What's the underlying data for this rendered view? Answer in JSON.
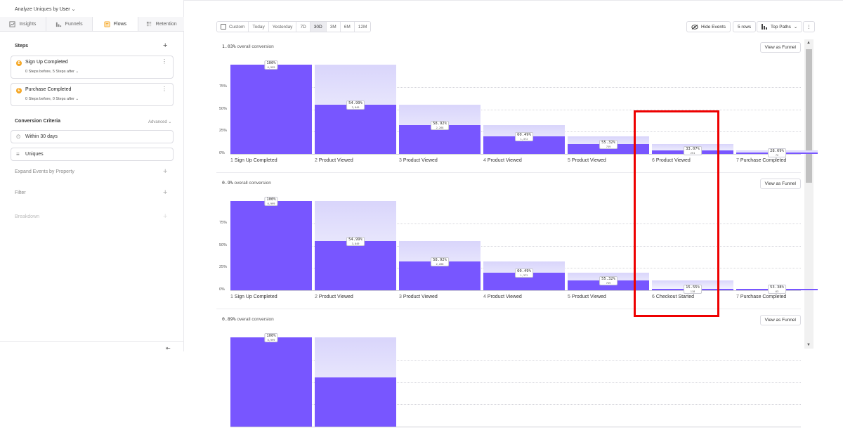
{
  "sidebar": {
    "analyze_prefix": "Analyze Uniques by",
    "analyze_value": "User",
    "tabs": [
      {
        "label": "Insights",
        "icon": "insights-icon",
        "active": false
      },
      {
        "label": "Funnels",
        "icon": "funnels-icon",
        "active": false
      },
      {
        "label": "Flows",
        "icon": "flows-icon",
        "active": true
      },
      {
        "label": "Retention",
        "icon": "retention-icon",
        "active": false
      }
    ],
    "steps_title": "Steps",
    "steps": [
      {
        "title": "Sign Up Completed",
        "sub": "0 Steps before, 5 Steps after"
      },
      {
        "title": "Purchase Completed",
        "sub": "0 Steps before, 0 Steps after"
      }
    ],
    "criteria_title": "Conversion Criteria",
    "advanced": "Advanced",
    "within": "Within 30 days",
    "uniques": "Uniques",
    "expand_events": "Expand Events by Property",
    "filter": "Filter",
    "breakdown": "Breakdown"
  },
  "toolbar": {
    "ranges": [
      "Custom",
      "Today",
      "Yesterday",
      "7D",
      "30D",
      "3M",
      "6M",
      "12M"
    ],
    "active_range": "30D",
    "hide_events": "Hide Events",
    "rows": "5 rows",
    "top_paths": "Top Paths"
  },
  "y_ticks": [
    "75%",
    "50%",
    "25%",
    "0%"
  ],
  "view_as_funnel": "View as Funnel",
  "funnels": [
    {
      "overall_num": "1.03%",
      "overall_text": "overall conversion",
      "steps": [
        {
          "n": "1",
          "label": "Sign Up Completed",
          "pct": "100%",
          "count": "6,999",
          "value": 1.0,
          "prev": 1.0
        },
        {
          "n": "2",
          "label": "Product Viewed",
          "pct": "54.99%",
          "count": "3,849",
          "value": 0.5499,
          "prev": 1.0
        },
        {
          "n": "3",
          "label": "Product Viewed",
          "pct": "58.92%",
          "count": "2,268",
          "value": 0.324,
          "prev": 0.5499
        },
        {
          "n": "4",
          "label": "Product Viewed",
          "pct": "60.49%",
          "count": "1,372",
          "value": 0.196,
          "prev": 0.324
        },
        {
          "n": "5",
          "label": "Product Viewed",
          "pct": "55.32%",
          "count": "759",
          "value": 0.1084,
          "prev": 0.196
        },
        {
          "n": "6",
          "label": "Product Viewed",
          "pct": "33.07%",
          "count": "251",
          "value": 0.0359,
          "prev": 0.1084
        },
        {
          "n": "7",
          "label": "Purchase Completed",
          "pct": "28.69%",
          "count": "72",
          "value": 0.0103,
          "prev": 0.0359
        }
      ]
    },
    {
      "overall_num": "0.9%",
      "overall_text": "overall conversion",
      "steps": [
        {
          "n": "1",
          "label": "Sign Up Completed",
          "pct": "100%",
          "count": "6,999",
          "value": 1.0,
          "prev": 1.0
        },
        {
          "n": "2",
          "label": "Product Viewed",
          "pct": "54.99%",
          "count": "3,849",
          "value": 0.5499,
          "prev": 1.0
        },
        {
          "n": "3",
          "label": "Product Viewed",
          "pct": "58.92%",
          "count": "2,268",
          "value": 0.324,
          "prev": 0.5499
        },
        {
          "n": "4",
          "label": "Product Viewed",
          "pct": "60.49%",
          "count": "1,372",
          "value": 0.196,
          "prev": 0.324
        },
        {
          "n": "5",
          "label": "Product Viewed",
          "pct": "55.32%",
          "count": "759",
          "value": 0.1084,
          "prev": 0.196
        },
        {
          "n": "6",
          "label": "Checkout Started",
          "pct": "15.55%",
          "count": "118",
          "value": 0.0169,
          "prev": 0.1084
        },
        {
          "n": "7",
          "label": "Purchase Completed",
          "pct": "53.38%",
          "count": "63",
          "value": 0.009,
          "prev": 0.0169
        }
      ]
    },
    {
      "overall_num": "0.89%",
      "overall_text": "overall conversion",
      "steps": [
        {
          "n": "1",
          "label": "",
          "pct": "100%",
          "count": "6,999",
          "value": 1.0,
          "prev": 1.0
        },
        {
          "n": "2",
          "label": "",
          "pct": "",
          "count": "",
          "value": 0.5499,
          "prev": 1.0
        }
      ]
    }
  ]
}
